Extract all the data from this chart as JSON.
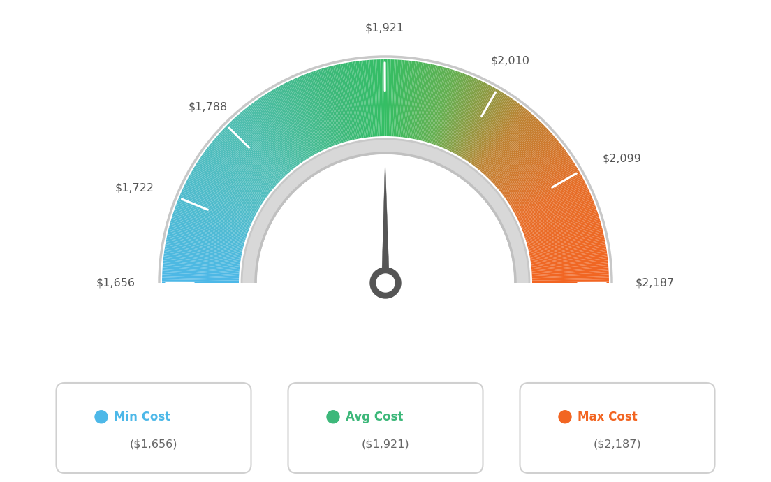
{
  "min_val": 1656,
  "avg_val": 1921,
  "max_val": 2187,
  "tick_labels": [
    "$1,656",
    "$1,722",
    "$1,788",
    "$1,921",
    "$2,010",
    "$2,099",
    "$2,187"
  ],
  "tick_values": [
    1656,
    1722,
    1788,
    1921,
    2010,
    2099,
    2187
  ],
  "legend_labels": [
    "Min Cost",
    "Avg Cost",
    "Max Cost"
  ],
  "legend_values": [
    "($1,656)",
    "($1,921)",
    "($2,187)"
  ],
  "legend_colors": [
    "#4db8e8",
    "#3db87a",
    "#f26522"
  ],
  "background_color": "#ffffff",
  "color_stops": [
    [
      0.0,
      [
        77,
        184,
        232
      ]
    ],
    [
      0.25,
      [
        80,
        190,
        180
      ]
    ],
    [
      0.42,
      [
        60,
        185,
        120
      ]
    ],
    [
      0.5,
      [
        52,
        190,
        100
      ]
    ],
    [
      0.6,
      [
        100,
        175,
        80
      ]
    ],
    [
      0.72,
      [
        190,
        130,
        50
      ]
    ],
    [
      0.85,
      [
        230,
        110,
        40
      ]
    ],
    [
      1.0,
      [
        242,
        101,
        34
      ]
    ]
  ]
}
